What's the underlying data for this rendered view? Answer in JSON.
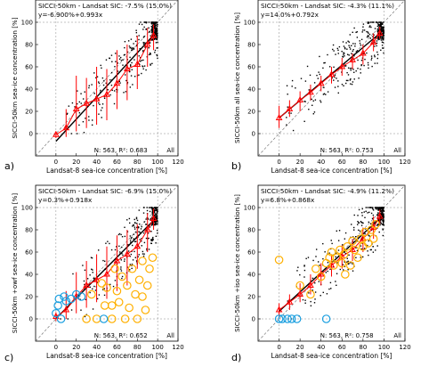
{
  "figure": {
    "columns": 2,
    "rows": 2
  },
  "styles": {
    "bin_color": "#ff0000",
    "fit_color": "#000000",
    "point_color": "#000000",
    "yellow_circle_color": "#ffb000",
    "blue_circle_color": "#1a9fe0",
    "identity_line": "dashed-gray"
  },
  "chart_data": [
    {
      "type": "scatter",
      "panel_label": "a)",
      "xlabel": "Landsat-8 sea-ice concentration [%]",
      "ylabel": "SICCI-50km sea-ice concentration [%]",
      "xlim": [
        -20,
        120
      ],
      "ylim": [
        -20,
        120
      ],
      "x_ticks": [
        0,
        20,
        40,
        60,
        80,
        100,
        120
      ],
      "y_ticks": [
        0,
        20,
        40,
        60,
        80,
        100
      ],
      "header": "SICCI-50km - Landsat SIC: -7.5% (15.0%)",
      "fit_text": "y=-6.900%+0.993x",
      "fit": {
        "intercept": -6.9,
        "slope": 0.993
      },
      "stats_text": "N: 563, R²: 0.683",
      "all_label": "All",
      "bins": {
        "x": [
          0,
          10,
          20,
          30,
          40,
          50,
          60,
          70,
          80,
          90,
          96
        ],
        "mean": [
          -1,
          5,
          22,
          27,
          31,
          35,
          45,
          58,
          62,
          80,
          88
        ],
        "low": [
          -4,
          -3,
          2,
          5,
          8,
          12,
          22,
          30,
          40,
          60,
          75
        ],
        "high": [
          1,
          22,
          52,
          50,
          60,
          58,
          75,
          80,
          88,
          95,
          98
        ]
      },
      "circles_yellow": [],
      "circles_blue": []
    },
    {
      "type": "scatter",
      "panel_label": "b)",
      "xlabel": "Landsat-8 sea-ice concentration [%]",
      "ylabel": "SICCI-50km all sea-ice concentration [%]",
      "xlim": [
        -20,
        120
      ],
      "ylim": [
        -20,
        120
      ],
      "x_ticks": [
        0,
        20,
        40,
        60,
        80,
        100,
        120
      ],
      "y_ticks": [
        0,
        20,
        40,
        60,
        80,
        100
      ],
      "header": "SICCI-50km - Landsat SIC: -4.3% (11.1%)",
      "fit_text": "y=14.0%+0.792x",
      "fit": {
        "intercept": 14.0,
        "slope": 0.792
      },
      "stats_text": "N: 563, R²: 0.753",
      "all_label": "All",
      "bins": {
        "x": [
          0,
          10,
          20,
          30,
          40,
          50,
          60,
          70,
          80,
          90,
          96
        ],
        "mean": [
          14,
          22,
          30,
          37,
          45,
          53,
          60,
          66,
          72,
          82,
          90
        ],
        "low": [
          5,
          15,
          20,
          30,
          38,
          45,
          52,
          58,
          62,
          74,
          85
        ],
        "high": [
          25,
          30,
          38,
          44,
          52,
          60,
          68,
          72,
          80,
          90,
          96
        ]
      },
      "circles_yellow": [],
      "circles_blue": []
    },
    {
      "type": "scatter",
      "panel_label": "c)",
      "xlabel": "Landsat-8 sea-ice concentration [%]",
      "ylabel": "SICCI-50km +owf sea-ice concentration [%]",
      "xlim": [
        -20,
        120
      ],
      "ylim": [
        -20,
        120
      ],
      "x_ticks": [
        0,
        20,
        40,
        60,
        80,
        100,
        120
      ],
      "y_ticks": [
        0,
        20,
        40,
        60,
        80,
        100
      ],
      "header": "SICCI-50km - Landsat SIC: -6.9% (15.0%)",
      "fit_text": "y=0.3%+0.918x",
      "fit": {
        "intercept": 0.3,
        "slope": 0.918
      },
      "stats_text": "N: 563, R²: 0.652",
      "all_label": "All",
      "bins": {
        "x": [
          0,
          10,
          20,
          30,
          40,
          50,
          60,
          70,
          80,
          90,
          96
        ],
        "mean": [
          2,
          8,
          20,
          30,
          35,
          40,
          52,
          58,
          65,
          80,
          90
        ],
        "low": [
          -2,
          0,
          5,
          10,
          15,
          18,
          25,
          30,
          45,
          60,
          80
        ],
        "high": [
          6,
          25,
          42,
          52,
          58,
          65,
          75,
          80,
          85,
          95,
          99
        ]
      },
      "circles_yellow": [
        [
          30,
          0
        ],
        [
          35,
          22
        ],
        [
          40,
          0
        ],
        [
          45,
          32
        ],
        [
          50,
          28
        ],
        [
          55,
          0
        ],
        [
          55,
          12
        ],
        [
          60,
          25
        ],
        [
          62,
          15
        ],
        [
          65,
          38
        ],
        [
          68,
          0
        ],
        [
          70,
          30
        ],
        [
          72,
          10
        ],
        [
          75,
          45
        ],
        [
          78,
          22
        ],
        [
          80,
          0
        ],
        [
          82,
          35
        ],
        [
          85,
          20
        ],
        [
          85,
          52
        ],
        [
          88,
          8
        ],
        [
          90,
          30
        ],
        [
          92,
          45
        ],
        [
          95,
          55
        ],
        [
          58,
          45
        ],
        [
          48,
          12
        ]
      ],
      "circles_blue": [
        [
          0,
          5
        ],
        [
          2,
          12
        ],
        [
          3,
          18
        ],
        [
          5,
          0
        ],
        [
          8,
          20
        ],
        [
          10,
          16
        ],
        [
          15,
          18
        ],
        [
          20,
          22
        ],
        [
          25,
          20
        ],
        [
          47,
          0
        ]
      ]
    },
    {
      "type": "scatter",
      "panel_label": "d)",
      "xlabel": "Landsat-8 sea-ice concentration [%]",
      "ylabel": "SICCI-50km +iso sea-ice concentration [%]",
      "xlim": [
        -20,
        120
      ],
      "ylim": [
        -20,
        120
      ],
      "x_ticks": [
        0,
        20,
        40,
        60,
        80,
        100,
        120
      ],
      "y_ticks": [
        0,
        20,
        40,
        60,
        80,
        100
      ],
      "header": "SICCI-50km - Landsat SIC: -4.9% (11.2%)",
      "fit_text": "y=6.8%+0.868x",
      "fit": {
        "intercept": 6.8,
        "slope": 0.868
      },
      "stats_text": "N: 563, R²: 0.758",
      "all_label": "All",
      "bins": {
        "x": [
          0,
          10,
          20,
          30,
          40,
          50,
          60,
          70,
          80,
          90,
          96
        ],
        "mean": [
          8,
          15,
          22,
          30,
          40,
          48,
          56,
          62,
          72,
          82,
          92
        ],
        "low": [
          2,
          8,
          15,
          22,
          30,
          38,
          45,
          52,
          60,
          72,
          85
        ],
        "high": [
          14,
          22,
          32,
          40,
          50,
          58,
          66,
          72,
          82,
          92,
          98
        ]
      },
      "circles_yellow": [
        [
          0,
          53
        ],
        [
          20,
          30
        ],
        [
          30,
          22
        ],
        [
          35,
          45
        ],
        [
          40,
          38
        ],
        [
          45,
          50
        ],
        [
          48,
          55
        ],
        [
          50,
          60
        ],
        [
          52,
          48
        ],
        [
          55,
          55
        ],
        [
          58,
          62
        ],
        [
          60,
          50
        ],
        [
          62,
          58
        ],
        [
          65,
          65
        ],
        [
          68,
          48
        ],
        [
          70,
          70
        ],
        [
          72,
          62
        ],
        [
          75,
          55
        ],
        [
          78,
          72
        ],
        [
          80,
          65
        ],
        [
          82,
          78
        ],
        [
          85,
          68
        ],
        [
          88,
          80
        ],
        [
          90,
          72
        ],
        [
          92,
          85
        ],
        [
          63,
          40
        ]
      ],
      "circles_blue": [
        [
          0,
          0
        ],
        [
          3,
          0
        ],
        [
          8,
          0
        ],
        [
          12,
          0
        ],
        [
          17,
          0
        ],
        [
          45,
          0
        ]
      ]
    }
  ]
}
